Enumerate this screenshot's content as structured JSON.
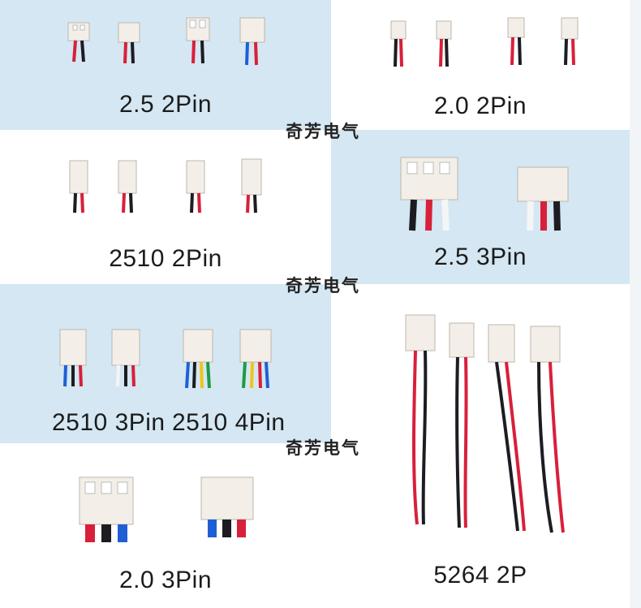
{
  "panels": {
    "p1": {
      "label": "2.5 2Pin"
    },
    "p2": {
      "label": "2.0 2Pin"
    },
    "p3": {
      "label": "2510 2Pin"
    },
    "p4": {
      "label": "2.5 3Pin"
    },
    "p5a": {
      "label": "2510 3Pin"
    },
    "p5b": {
      "label": "2510 4Pin"
    },
    "p6": {
      "label": "5264  2P"
    },
    "p7": {
      "label": "2.0 3Pin"
    }
  },
  "watermark": "奇芳电气",
  "colors": {
    "blue_panel": "#d4e7f3",
    "wire_red": "#d8203a",
    "wire_black": "#1c1c22",
    "wire_blue": "#1f5fd6",
    "wire_white": "#f5f5f5",
    "wire_yellow": "#f0c419",
    "wire_green": "#1f9a45",
    "housing": "#f3efe8"
  }
}
